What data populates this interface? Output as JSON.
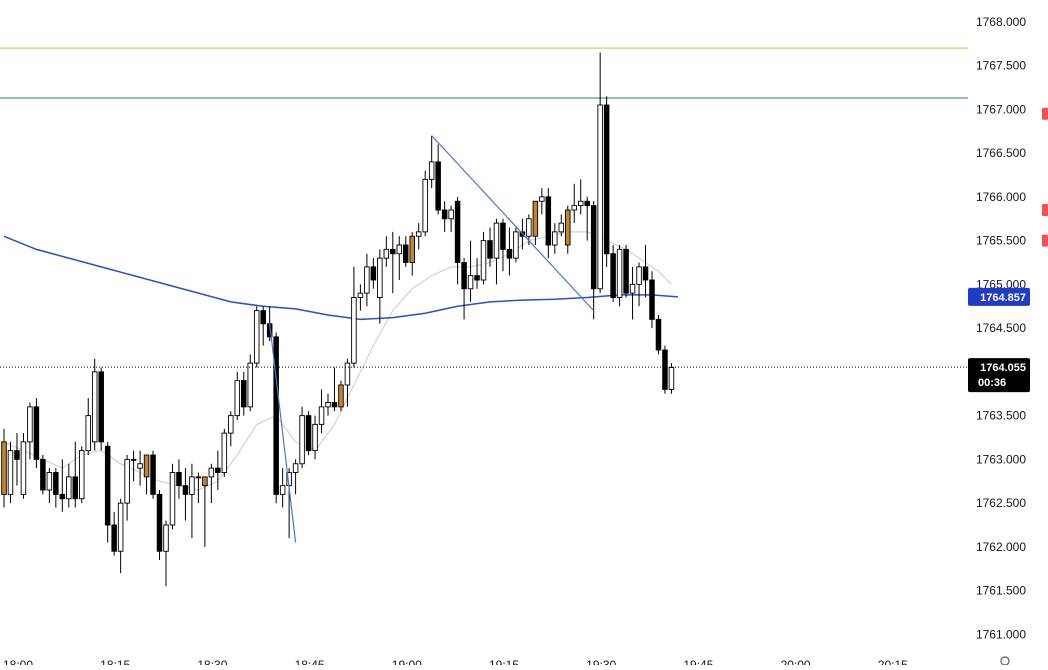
{
  "chart_data": {
    "type": "candlestick",
    "ylim": [
      1760.65,
      1768.25
    ],
    "xlim": [
      1080,
      1281
    ],
    "y_ticks": [
      "1768.000",
      "1767.500",
      "1767.000",
      "1766.500",
      "1766.000",
      "1765.500",
      "1765.000",
      "1764.500",
      "1764.000",
      "1763.500",
      "1763.000",
      "1762.500",
      "1762.000",
      "1761.500",
      "1761.000"
    ],
    "x_ticks": [
      {
        "label": "18:00",
        "x": 1080
      },
      {
        "label": "18:15",
        "x": 1095
      },
      {
        "label": "18:30",
        "x": 1110
      },
      {
        "label": "18:45",
        "x": 1125
      },
      {
        "label": "19:00",
        "x": 1140
      },
      {
        "label": "19:15",
        "x": 1155
      },
      {
        "label": "19:30",
        "x": 1170
      },
      {
        "label": "19:45",
        "x": 1185
      },
      {
        "label": "20:00",
        "x": 1200
      },
      {
        "label": "20:15",
        "x": 1215
      }
    ],
    "colors": {
      "bull": "#ffffff",
      "bear": "#000000",
      "highlight": "#c8842a",
      "ma_slow": "#2b4fc4",
      "ma_fast": "#d2d2d2",
      "resistance": "#f0c070",
      "level": "#4a9a8a",
      "trendline": "#4a78d0",
      "price_tag": "#000000",
      "ma_tag": "#1e3cc8",
      "side_marker": "#ef5350"
    },
    "candles": [
      {
        "t": 1080.0,
        "o": 1763.2,
        "h": 1763.35,
        "l": 1762.45,
        "c": 1762.6,
        "hl": true
      },
      {
        "t": 1081.0,
        "o": 1762.6,
        "h": 1763.2,
        "l": 1762.5,
        "c": 1763.1
      },
      {
        "t": 1082.0,
        "o": 1763.1,
        "h": 1763.3,
        "l": 1762.7,
        "c": 1763.0
      },
      {
        "t": 1083.0,
        "o": 1762.6,
        "h": 1763.3,
        "l": 1762.55,
        "c": 1763.2
      },
      {
        "t": 1084.0,
        "o": 1763.2,
        "h": 1763.65,
        "l": 1763.0,
        "c": 1763.6
      },
      {
        "t": 1085.0,
        "o": 1763.6,
        "h": 1763.7,
        "l": 1762.9,
        "c": 1763.0
      },
      {
        "t": 1086.0,
        "o": 1763.0,
        "h": 1763.05,
        "l": 1762.6,
        "c": 1762.65
      },
      {
        "t": 1087.0,
        "o": 1762.65,
        "h": 1762.9,
        "l": 1762.5,
        "c": 1762.85
      },
      {
        "t": 1088.0,
        "o": 1762.85,
        "h": 1762.9,
        "l": 1762.45,
        "c": 1762.6
      },
      {
        "t": 1089.0,
        "o": 1762.6,
        "h": 1763.0,
        "l": 1762.4,
        "c": 1762.55
      },
      {
        "t": 1090.0,
        "o": 1762.55,
        "h": 1762.95,
        "l": 1762.45,
        "c": 1762.8
      },
      {
        "t": 1091.0,
        "o": 1762.8,
        "h": 1763.2,
        "l": 1762.45,
        "c": 1762.55
      },
      {
        "t": 1092.0,
        "o": 1762.55,
        "h": 1763.15,
        "l": 1762.5,
        "c": 1763.1
      },
      {
        "t": 1093.0,
        "o": 1763.1,
        "h": 1763.7,
        "l": 1763.05,
        "c": 1763.5
      },
      {
        "t": 1094.0,
        "o": 1763.2,
        "h": 1764.15,
        "l": 1763.1,
        "c": 1764.0
      },
      {
        "t": 1095.0,
        "o": 1764.0,
        "h": 1764.05,
        "l": 1763.1,
        "c": 1763.2
      },
      {
        "t": 1096.0,
        "o": 1763.15,
        "h": 1763.2,
        "l": 1762.05,
        "c": 1762.25
      },
      {
        "t": 1097.0,
        "o": 1762.25,
        "h": 1762.4,
        "l": 1761.9,
        "c": 1761.95
      },
      {
        "t": 1098.0,
        "o": 1761.95,
        "h": 1762.55,
        "l": 1761.7,
        "c": 1762.5
      },
      {
        "t": 1099.0,
        "o": 1762.5,
        "h": 1763.05,
        "l": 1762.3,
        "c": 1763.0
      },
      {
        "t": 1100.0,
        "o": 1763.0,
        "h": 1763.1,
        "l": 1762.75,
        "c": 1763.0
      },
      {
        "t": 1101.0,
        "o": 1762.9,
        "h": 1763.1,
        "l": 1762.7,
        "c": 1762.95
      },
      {
        "t": 1102.0,
        "o": 1762.8,
        "h": 1763.05,
        "l": 1762.6,
        "c": 1763.05,
        "hl": true
      },
      {
        "t": 1103.0,
        "o": 1763.05,
        "h": 1763.1,
        "l": 1762.55,
        "c": 1762.6
      },
      {
        "t": 1104.0,
        "o": 1762.6,
        "h": 1762.65,
        "l": 1761.85,
        "c": 1761.95
      },
      {
        "t": 1105.0,
        "o": 1761.95,
        "h": 1762.3,
        "l": 1761.55,
        "c": 1762.25
      },
      {
        "t": 1106.0,
        "o": 1762.25,
        "h": 1762.95,
        "l": 1762.2,
        "c": 1762.85
      },
      {
        "t": 1107.0,
        "o": 1762.85,
        "h": 1763.0,
        "l": 1762.55,
        "c": 1762.7
      },
      {
        "t": 1108.0,
        "o": 1762.7,
        "h": 1762.9,
        "l": 1762.3,
        "c": 1762.6
      },
      {
        "t": 1109.0,
        "o": 1762.6,
        "h": 1762.95,
        "l": 1762.1,
        "c": 1762.8
      },
      {
        "t": 1110.0,
        "o": 1762.8,
        "h": 1762.85,
        "l": 1762.5,
        "c": 1762.8
      },
      {
        "t": 1111.0,
        "o": 1762.7,
        "h": 1762.8,
        "l": 1762.0,
        "c": 1762.8,
        "hl": true
      },
      {
        "t": 1112.0,
        "o": 1762.8,
        "h": 1762.95,
        "l": 1762.5,
        "c": 1762.9
      },
      {
        "t": 1113.0,
        "o": 1762.9,
        "h": 1763.1,
        "l": 1762.65,
        "c": 1762.85
      },
      {
        "t": 1114.0,
        "o": 1762.85,
        "h": 1763.35,
        "l": 1762.8,
        "c": 1763.3
      },
      {
        "t": 1115.0,
        "o": 1763.3,
        "h": 1763.55,
        "l": 1763.15,
        "c": 1763.5
      },
      {
        "t": 1116.0,
        "o": 1763.5,
        "h": 1764.0,
        "l": 1763.45,
        "c": 1763.9
      },
      {
        "t": 1117.0,
        "o": 1763.9,
        "h": 1764.0,
        "l": 1763.5,
        "c": 1763.6
      },
      {
        "t": 1118.0,
        "o": 1763.6,
        "h": 1764.2,
        "l": 1763.55,
        "c": 1764.1
      },
      {
        "t": 1119.0,
        "o": 1764.1,
        "h": 1764.75,
        "l": 1764.05,
        "c": 1764.7
      },
      {
        "t": 1120.0,
        "o": 1764.7,
        "h": 1764.75,
        "l": 1764.3,
        "c": 1764.55
      },
      {
        "t": 1121.0,
        "o": 1764.55,
        "h": 1764.75,
        "l": 1764.35,
        "c": 1764.4
      },
      {
        "t": 1122.0,
        "o": 1764.4,
        "h": 1764.45,
        "l": 1762.5,
        "c": 1762.6
      },
      {
        "t": 1123.0,
        "o": 1762.6,
        "h": 1762.9,
        "l": 1762.45,
        "c": 1762.7
      },
      {
        "t": 1124.0,
        "o": 1762.7,
        "h": 1762.9,
        "l": 1762.1,
        "c": 1762.85
      },
      {
        "t": 1125.0,
        "o": 1762.85,
        "h": 1763.0,
        "l": 1762.6,
        "c": 1762.95
      },
      {
        "t": 1126.0,
        "o": 1762.95,
        "h": 1763.6,
        "l": 1762.9,
        "c": 1763.5
      },
      {
        "t": 1127.0,
        "o": 1763.5,
        "h": 1763.55,
        "l": 1763.05,
        "c": 1763.1
      },
      {
        "t": 1128.0,
        "o": 1763.1,
        "h": 1763.5,
        "l": 1763.0,
        "c": 1763.4
      },
      {
        "t": 1129.0,
        "o": 1763.4,
        "h": 1763.8,
        "l": 1763.3,
        "c": 1763.6
      },
      {
        "t": 1130.0,
        "o": 1763.6,
        "h": 1763.75,
        "l": 1763.5,
        "c": 1763.65
      },
      {
        "t": 1131.0,
        "o": 1763.65,
        "h": 1764.05,
        "l": 1763.55,
        "c": 1763.6
      },
      {
        "t": 1132.0,
        "o": 1763.6,
        "h": 1763.9,
        "l": 1763.55,
        "c": 1763.85,
        "hl": true
      },
      {
        "t": 1133.0,
        "o": 1763.85,
        "h": 1764.15,
        "l": 1763.6,
        "c": 1764.1
      },
      {
        "t": 1134.0,
        "o": 1764.1,
        "h": 1765.2,
        "l": 1764.05,
        "c": 1764.85
      },
      {
        "t": 1135.0,
        "o": 1764.85,
        "h": 1765.0,
        "l": 1764.7,
        "c": 1764.9
      },
      {
        "t": 1136.0,
        "o": 1764.9,
        "h": 1765.35,
        "l": 1764.75,
        "c": 1765.2
      },
      {
        "t": 1137.0,
        "o": 1765.2,
        "h": 1765.3,
        "l": 1764.95,
        "c": 1765.05
      },
      {
        "t": 1138.0,
        "o": 1764.85,
        "h": 1765.4,
        "l": 1764.55,
        "c": 1765.3
      },
      {
        "t": 1139.0,
        "o": 1765.3,
        "h": 1765.55,
        "l": 1765.2,
        "c": 1765.4
      },
      {
        "t": 1140.0,
        "o": 1765.4,
        "h": 1765.6,
        "l": 1764.9,
        "c": 1765.35
      },
      {
        "t": 1141.0,
        "o": 1765.35,
        "h": 1765.55,
        "l": 1765.05,
        "c": 1765.45
      },
      {
        "t": 1142.0,
        "o": 1765.45,
        "h": 1765.55,
        "l": 1765.2,
        "c": 1765.25
      },
      {
        "t": 1143.0,
        "o": 1765.25,
        "h": 1765.6,
        "l": 1765.1,
        "c": 1765.55,
        "hl": true
      },
      {
        "t": 1144.0,
        "o": 1765.55,
        "h": 1765.7,
        "l": 1765.4,
        "c": 1765.6
      },
      {
        "t": 1145.0,
        "o": 1765.6,
        "h": 1766.3,
        "l": 1765.55,
        "c": 1766.2
      },
      {
        "t": 1146.0,
        "o": 1766.2,
        "h": 1766.7,
        "l": 1766.1,
        "c": 1766.4
      },
      {
        "t": 1147.0,
        "o": 1766.4,
        "h": 1766.6,
        "l": 1765.8,
        "c": 1765.85
      },
      {
        "t": 1148.0,
        "o": 1765.85,
        "h": 1765.95,
        "l": 1765.6,
        "c": 1765.75
      },
      {
        "t": 1149.0,
        "o": 1765.75,
        "h": 1765.9,
        "l": 1765.6,
        "c": 1765.85
      },
      {
        "t": 1150.0,
        "o": 1765.95,
        "h": 1766.0,
        "l": 1765.0,
        "c": 1765.25
      },
      {
        "t": 1151.0,
        "o": 1765.25,
        "h": 1765.3,
        "l": 1764.6,
        "c": 1764.95
      },
      {
        "t": 1152.0,
        "o": 1764.95,
        "h": 1765.5,
        "l": 1764.8,
        "c": 1765.1
      },
      {
        "t": 1153.0,
        "o": 1765.1,
        "h": 1765.3,
        "l": 1764.95,
        "c": 1765.05
      },
      {
        "t": 1154.0,
        "o": 1765.05,
        "h": 1765.6,
        "l": 1765.0,
        "c": 1765.5
      },
      {
        "t": 1155.0,
        "o": 1765.5,
        "h": 1765.65,
        "l": 1765.2,
        "c": 1765.3
      },
      {
        "t": 1156.0,
        "o": 1765.3,
        "h": 1765.75,
        "l": 1765.0,
        "c": 1765.7
      },
      {
        "t": 1157.0,
        "o": 1765.7,
        "h": 1765.75,
        "l": 1765.15,
        "c": 1765.4
      },
      {
        "t": 1158.0,
        "o": 1765.4,
        "h": 1765.65,
        "l": 1765.1,
        "c": 1765.3
      },
      {
        "t": 1159.0,
        "o": 1765.3,
        "h": 1765.65,
        "l": 1765.25,
        "c": 1765.6
      },
      {
        "t": 1160.0,
        "o": 1765.6,
        "h": 1765.75,
        "l": 1765.4,
        "c": 1765.55
      },
      {
        "t": 1161.0,
        "o": 1765.55,
        "h": 1765.8,
        "l": 1765.45,
        "c": 1765.75
      },
      {
        "t": 1162.0,
        "o": 1765.55,
        "h": 1765.95,
        "l": 1765.45,
        "c": 1765.95,
        "hl": true
      },
      {
        "t": 1163.0,
        "o": 1765.95,
        "h": 1766.1,
        "l": 1765.8,
        "c": 1766.0
      },
      {
        "t": 1164.0,
        "o": 1766.0,
        "h": 1766.1,
        "l": 1765.3,
        "c": 1765.45
      },
      {
        "t": 1165.0,
        "o": 1765.45,
        "h": 1765.7,
        "l": 1765.35,
        "c": 1765.6
      },
      {
        "t": 1166.0,
        "o": 1765.6,
        "h": 1765.8,
        "l": 1765.55,
        "c": 1765.7
      },
      {
        "t": 1167.0,
        "o": 1765.45,
        "h": 1765.9,
        "l": 1765.35,
        "c": 1765.85,
        "hl": true
      },
      {
        "t": 1168.0,
        "o": 1765.85,
        "h": 1766.15,
        "l": 1765.7,
        "c": 1765.9
      },
      {
        "t": 1169.0,
        "o": 1765.9,
        "h": 1766.2,
        "l": 1765.8,
        "c": 1765.95
      },
      {
        "t": 1170.0,
        "o": 1765.95,
        "h": 1766.0,
        "l": 1765.5,
        "c": 1765.9
      },
      {
        "t": 1171.0,
        "o": 1765.9,
        "h": 1765.95,
        "l": 1764.6,
        "c": 1764.95
      },
      {
        "t": 1172.0,
        "o": 1764.95,
        "h": 1767.65,
        "l": 1764.9,
        "c": 1767.05
      },
      {
        "t": 1173.0,
        "o": 1767.05,
        "h": 1767.15,
        "l": 1765.2,
        "c": 1765.35
      },
      {
        "t": 1174.0,
        "o": 1765.35,
        "h": 1765.45,
        "l": 1764.8,
        "c": 1764.85
      },
      {
        "t": 1175.0,
        "o": 1764.85,
        "h": 1765.45,
        "l": 1764.75,
        "c": 1765.4
      },
      {
        "t": 1176.0,
        "o": 1765.4,
        "h": 1765.45,
        "l": 1764.85,
        "c": 1764.9
      },
      {
        "t": 1177.0,
        "o": 1764.9,
        "h": 1765.2,
        "l": 1764.6,
        "c": 1765.0
      },
      {
        "t": 1178.0,
        "o": 1765.0,
        "h": 1765.25,
        "l": 1764.75,
        "c": 1765.2
      },
      {
        "t": 1179.0,
        "o": 1765.2,
        "h": 1765.45,
        "l": 1764.85,
        "c": 1765.05
      },
      {
        "t": 1180.0,
        "o": 1765.05,
        "h": 1765.15,
        "l": 1764.5,
        "c": 1764.6
      },
      {
        "t": 1181.0,
        "o": 1764.6,
        "h": 1764.65,
        "l": 1764.2,
        "c": 1764.25
      },
      {
        "t": 1182.0,
        "o": 1764.25,
        "h": 1764.3,
        "l": 1763.75,
        "c": 1763.8
      },
      {
        "t": 1183.0,
        "o": 1763.8,
        "h": 1764.1,
        "l": 1763.75,
        "c": 1764.05
      }
    ],
    "ma_slow": [
      [
        1080,
        1765.55
      ],
      [
        1085,
        1765.4
      ],
      [
        1090,
        1765.3
      ],
      [
        1095,
        1765.2
      ],
      [
        1100,
        1765.1
      ],
      [
        1105,
        1765.0
      ],
      [
        1110,
        1764.9
      ],
      [
        1115,
        1764.8
      ],
      [
        1120,
        1764.75
      ],
      [
        1125,
        1764.72
      ],
      [
        1130,
        1764.65
      ],
      [
        1135,
        1764.6
      ],
      [
        1140,
        1764.62
      ],
      [
        1145,
        1764.67
      ],
      [
        1150,
        1764.75
      ],
      [
        1155,
        1764.8
      ],
      [
        1160,
        1764.82
      ],
      [
        1165,
        1764.83
      ],
      [
        1170,
        1764.85
      ],
      [
        1175,
        1764.88
      ],
      [
        1180,
        1764.88
      ],
      [
        1184,
        1764.857
      ]
    ],
    "ma_fast": [
      [
        1080,
        1763.2
      ],
      [
        1083,
        1763.1
      ],
      [
        1086,
        1763.0
      ],
      [
        1089,
        1762.9
      ],
      [
        1092,
        1763.05
      ],
      [
        1095,
        1763.1
      ],
      [
        1098,
        1762.95
      ],
      [
        1101,
        1762.85
      ],
      [
        1104,
        1762.75
      ],
      [
        1107,
        1762.7
      ],
      [
        1110,
        1762.65
      ],
      [
        1113,
        1762.75
      ],
      [
        1116,
        1763.05
      ],
      [
        1119,
        1763.4
      ],
      [
        1122,
        1763.5
      ],
      [
        1125,
        1763.2
      ],
      [
        1128,
        1763.1
      ],
      [
        1131,
        1763.4
      ],
      [
        1134,
        1763.85
      ],
      [
        1137,
        1764.3
      ],
      [
        1140,
        1764.7
      ],
      [
        1143,
        1764.95
      ],
      [
        1146,
        1765.1
      ],
      [
        1149,
        1765.2
      ],
      [
        1152,
        1765.2
      ],
      [
        1155,
        1765.25
      ],
      [
        1158,
        1765.35
      ],
      [
        1161,
        1765.5
      ],
      [
        1164,
        1765.55
      ],
      [
        1167,
        1765.6
      ],
      [
        1170,
        1765.6
      ],
      [
        1173,
        1765.5
      ],
      [
        1176,
        1765.4
      ],
      [
        1179,
        1765.25
      ],
      [
        1181,
        1765.15
      ],
      [
        1183,
        1765.0
      ]
    ],
    "h_lines": [
      {
        "price": 1767.7,
        "color": "#f0c070"
      },
      {
        "price": 1767.13,
        "color": "#4a9a8a"
      }
    ],
    "trendlines": [
      {
        "x1": 1121.0,
        "y1": 1764.55,
        "x2": 1125.0,
        "y2": 1762.05
      },
      {
        "x1": 1146.0,
        "y1": 1766.7,
        "x2": 1171.0,
        "y2": 1764.7
      }
    ],
    "current_price": 1764.055,
    "current_price_label": "1764.055",
    "countdown": "00:36",
    "ma_value_label": "1764.857",
    "ma_value": 1764.857,
    "side_markers": [
      1766.95,
      1765.85,
      1765.5
    ]
  }
}
